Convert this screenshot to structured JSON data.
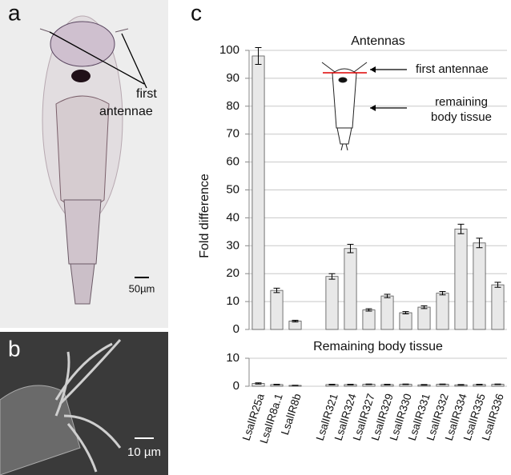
{
  "panels": {
    "a": "a",
    "b": "b",
    "c": "c"
  },
  "photo_a": {
    "label": [
      "first",
      "antennae"
    ],
    "scale": "50µm"
  },
  "photo_b": {
    "scale": "10 µm"
  },
  "inset": {
    "antennae": "first antennae",
    "body": [
      "remaining",
      "body tissue"
    ]
  },
  "y_label": "Fold difference",
  "chart_data": [
    {
      "type": "bar",
      "title": "Antennas",
      "color": "#e8e8e8",
      "values": [
        98,
        14,
        3,
        null,
        19,
        29,
        7,
        12,
        6,
        8,
        13,
        36,
        31,
        16
      ],
      "errors": [
        3,
        0.8,
        0.3,
        null,
        1,
        1.5,
        0.4,
        0.6,
        0.4,
        0.5,
        0.6,
        1.7,
        1.7,
        0.9
      ],
      "ylim": [
        0,
        100
      ],
      "yticks": [
        0,
        10,
        20,
        30,
        40,
        50,
        60,
        70,
        80,
        90,
        100
      ],
      "grid": true
    },
    {
      "type": "bar",
      "title": "Remaining body tissue",
      "color": "#e8e8e8",
      "categories": [
        "LsalIR25a",
        "LsalIR8a.1",
        "LsalIR8b",
        null,
        "LsalIR321",
        "LsalIR324",
        "LsalIR327",
        "LsalIR329",
        "LsalIR330",
        "LsalIR331",
        "LsalIR332",
        "LsalIR334",
        "LsalIR335",
        "LsalIR336"
      ],
      "values": [
        1,
        0.6,
        0.3,
        null,
        0.6,
        0.6,
        0.7,
        0.6,
        0.7,
        0.5,
        0.7,
        0.5,
        0.6,
        0.7
      ],
      "errors": [
        0.2,
        0.1,
        0.05,
        null,
        0.1,
        0.1,
        0.1,
        0.1,
        0.1,
        0.1,
        0.1,
        0.1,
        0.1,
        0.1
      ],
      "ylim": [
        0,
        10
      ],
      "yticks": [
        0,
        10
      ],
      "grid": true
    }
  ]
}
